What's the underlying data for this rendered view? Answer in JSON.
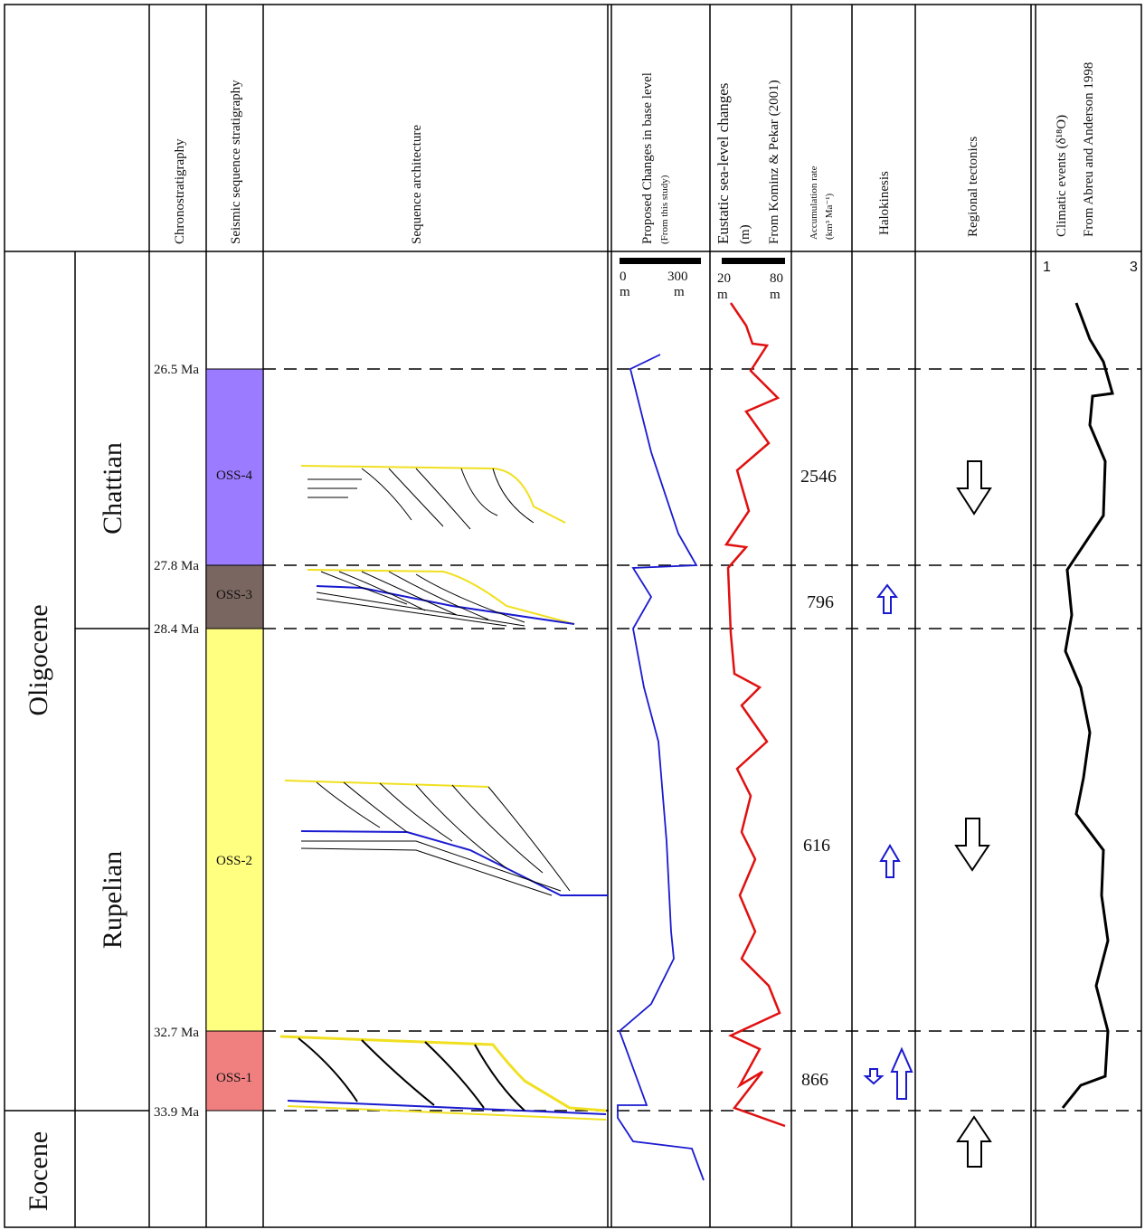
{
  "headers": {
    "chrono": "Chronostratigraphy",
    "seismic": "Seismic sequence stratigraphy",
    "architecture": "Sequence architecture",
    "base_level": "Proposed Changes in base level",
    "base_level_source": "(From this study)",
    "eustatic": "Eustatic sea-level changes",
    "eustatic_unit": "(m)",
    "eustatic_source": "From Kominz & Pekar (2001)",
    "accumulation": "Accumulation rate",
    "accumulation_unit": "(km³ Ma⁻¹)",
    "halokinesis": "Halokinesis",
    "tectonics": "Regional tectonics",
    "climatic": "Climatic events (δ¹⁸O)",
    "climatic_source": "From Abreu and Anderson 1998"
  },
  "epochs": [
    "Oligocene",
    "Eocene"
  ],
  "stages": [
    "Chattian",
    "Rupelian"
  ],
  "ages": [
    "26.5 Ma",
    "27.8 Ma",
    "28.4 Ma",
    "32.7 Ma",
    "33.9 Ma"
  ],
  "sequences": [
    "OSS-4",
    "OSS-3",
    "OSS-2",
    "OSS-1"
  ],
  "accumulation_rates": [
    "2546",
    "796",
    "616",
    "866"
  ],
  "scales": {
    "base_level": [
      "0",
      "300",
      "m",
      "m"
    ],
    "eustatic": [
      "20",
      "80",
      "m",
      "m"
    ],
    "climatic": [
      "1",
      "3"
    ]
  }
}
